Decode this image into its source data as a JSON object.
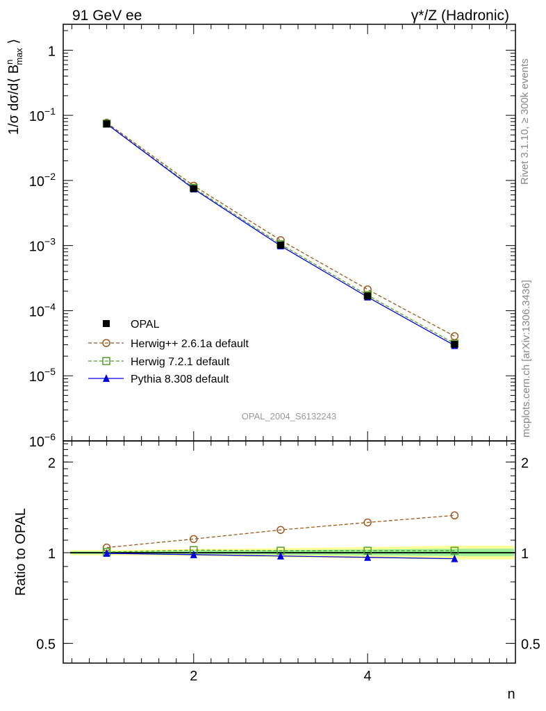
{
  "header": {
    "left": "91 GeV ee",
    "right": "γ*/Z (Hadronic)"
  },
  "side": {
    "rivet": "Rivet 3.1.10, ≥ 300k events",
    "mcplots": "mcplots.cern.ch [arXiv:1306.3436]"
  },
  "analysis_id": "OPAL_2004_S6132243",
  "chart_data": [
    {
      "type": "line",
      "panel": "main",
      "title": "",
      "xlabel": "n",
      "ylabel": "1/σ dσ/d⟨ B_max^n ⟩",
      "yscale": "log",
      "xlim": [
        0.5,
        5.7
      ],
      "ylim": [
        1e-06,
        2.5
      ],
      "yticks": [
        {
          "v": 1,
          "base": "1",
          "exp": ""
        },
        {
          "v": 0.1,
          "base": "10",
          "exp": "−1"
        },
        {
          "v": 0.01,
          "base": "10",
          "exp": "−2"
        },
        {
          "v": 0.001,
          "base": "10",
          "exp": "−3"
        },
        {
          "v": 0.0001,
          "base": "10",
          "exp": "−4"
        },
        {
          "v": 1e-05,
          "base": "10",
          "exp": "−5"
        },
        {
          "v": 1e-06,
          "base": "10",
          "exp": "−6"
        }
      ],
      "x": [
        1,
        2,
        3,
        4,
        5
      ],
      "series": [
        {
          "name": "OPAL",
          "values": [
            0.074,
            0.0075,
            0.00102,
            0.000168,
            3.05e-05
          ],
          "color": "#000000",
          "marker": "square-filled",
          "line": "none"
        },
        {
          "name": "Herwig++ 2.6.1a default",
          "values": [
            0.077,
            0.0083,
            0.00121,
            0.000212,
            4.05e-05
          ],
          "color": "#a0561c",
          "marker": "circle-open",
          "line": "dashed"
        },
        {
          "name": "Herwig 7.2.1 default",
          "values": [
            0.0745,
            0.0077,
            0.00105,
            0.000173,
            3.12e-05
          ],
          "color": "#4fa12a",
          "marker": "square-open",
          "line": "dashed"
        },
        {
          "name": "Pythia 8.308 default",
          "values": [
            0.0738,
            0.0074,
            0.00099,
            0.000162,
            2.92e-05
          ],
          "color": "#0000e0",
          "marker": "triangle-filled",
          "line": "solid"
        }
      ]
    },
    {
      "type": "line",
      "panel": "ratio",
      "xlabel": "n",
      "ylabel": "Ratio to OPAL",
      "yscale": "log",
      "xlim": [
        0.5,
        5.7
      ],
      "ylim": [
        0.43,
        2.35
      ],
      "xticks": [
        2,
        4
      ],
      "yticks": [
        0.5,
        1,
        2
      ],
      "x": [
        1,
        2,
        3,
        4,
        5
      ],
      "band_outer": {
        "lo": [
          0.98,
          0.975,
          0.965,
          0.958,
          0.95
        ],
        "hi": [
          1.02,
          1.028,
          1.035,
          1.045,
          1.055
        ],
        "color": "#ffff99"
      },
      "band_inner": {
        "lo": [
          0.99,
          0.99,
          0.985,
          0.98,
          0.975
        ],
        "hi": [
          1.01,
          1.015,
          1.02,
          1.025,
          1.03
        ],
        "color": "#99ee99"
      },
      "series": [
        {
          "name": "Herwig++ 2.6.1a default",
          "values": [
            1.04,
            1.11,
            1.19,
            1.26,
            1.33
          ],
          "color": "#a0561c",
          "marker": "circle-open",
          "line": "dashed"
        },
        {
          "name": "Herwig 7.2.1 default",
          "values": [
            1.005,
            1.02,
            1.015,
            1.015,
            1.015
          ],
          "color": "#4fa12a",
          "marker": "square-open",
          "line": "dashed"
        },
        {
          "name": "Pythia 8.308 default",
          "values": [
            0.995,
            0.985,
            0.975,
            0.965,
            0.955
          ],
          "color": "#0000e0",
          "marker": "triangle-filled",
          "line": "solid"
        }
      ]
    }
  ]
}
